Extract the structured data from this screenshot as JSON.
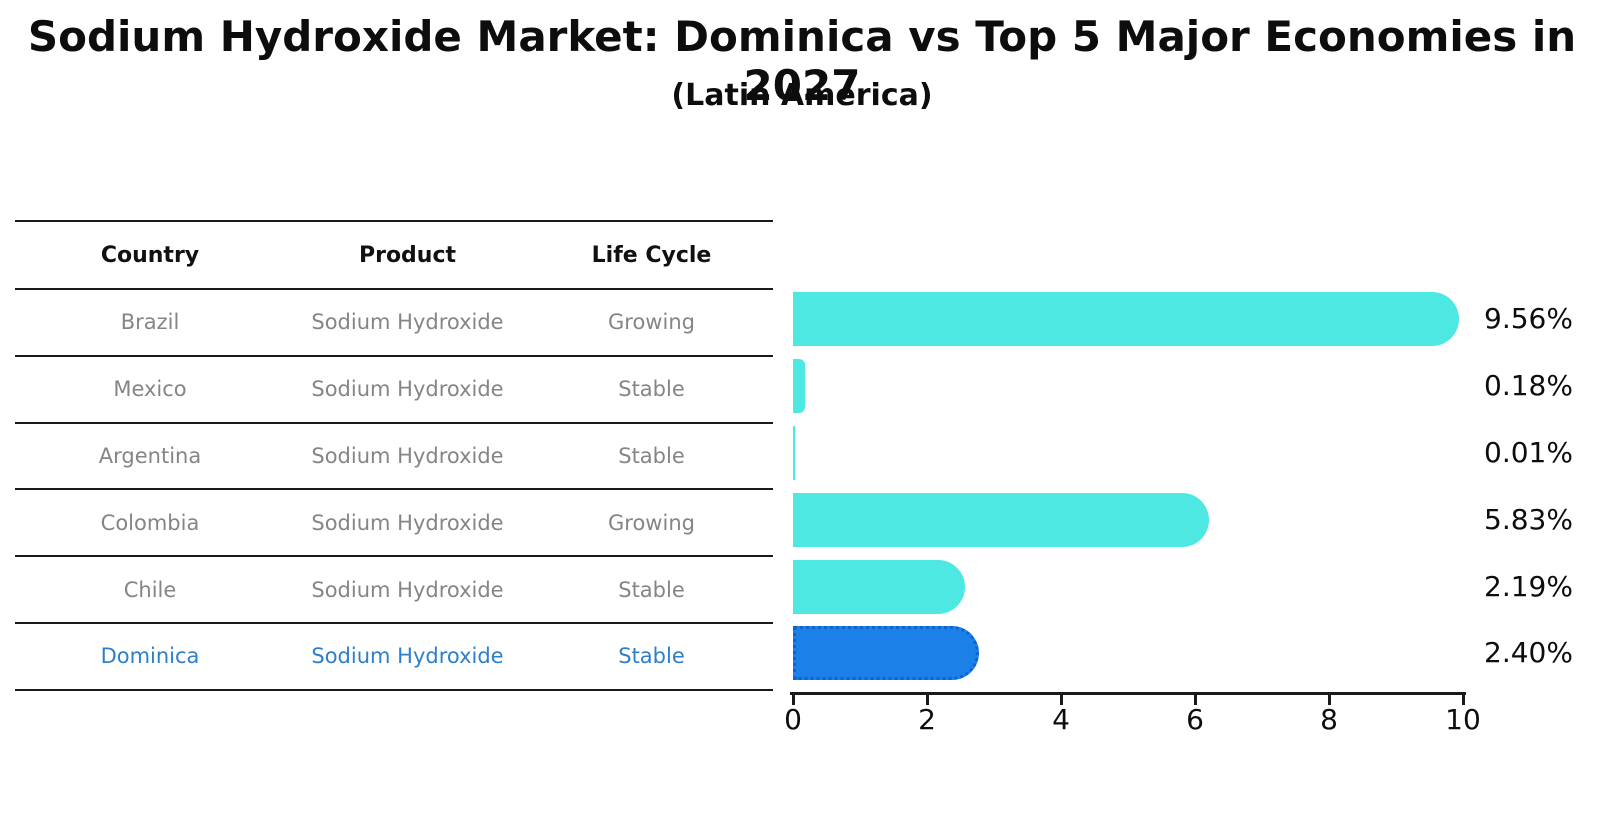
{
  "title": "Sodium Hydroxide Market: Dominica vs Top 5 Major Economies in 2027",
  "subtitle": "(Latin America)",
  "table": {
    "headers": [
      "Country",
      "Product",
      "Life Cycle"
    ],
    "rows": [
      {
        "country": "Brazil",
        "product": "Sodium Hydroxide",
        "life_cycle": "Growing",
        "highlight": false
      },
      {
        "country": "Mexico",
        "product": "Sodium Hydroxide",
        "life_cycle": "Stable",
        "highlight": false
      },
      {
        "country": "Argentina",
        "product": "Sodium Hydroxide",
        "life_cycle": "Stable",
        "highlight": false
      },
      {
        "country": "Colombia",
        "product": "Sodium Hydroxide",
        "life_cycle": "Growing",
        "highlight": false
      },
      {
        "country": "Chile",
        "product": "Sodium Hydroxide",
        "life_cycle": "Stable",
        "highlight": false
      },
      {
        "country": "Dominica",
        "product": "Sodium Hydroxide",
        "life_cycle": "Stable",
        "highlight": true
      }
    ]
  },
  "chart_data": {
    "type": "bar",
    "orientation": "horizontal",
    "categories": [
      "Brazil",
      "Mexico",
      "Argentina",
      "Colombia",
      "Chile",
      "Dominica"
    ],
    "values": [
      9.56,
      0.18,
      0.01,
      5.83,
      2.19,
      2.4
    ],
    "value_labels": [
      "9.56%",
      "0.18%",
      "0.01%",
      "5.83%",
      "2.19%",
      "2.40%"
    ],
    "title": "Sodium Hydroxide Market: Dominica vs Top 5 Major Economies in 2027 (Latin America)",
    "xlabel": "",
    "ylabel": "",
    "xlim": [
      0,
      10
    ],
    "xticks": [
      0,
      2,
      4,
      6,
      8,
      10
    ],
    "grid": false,
    "legend": false,
    "bar_color": "#4de8e2",
    "highlight_color": "#1b80e8",
    "highlight_border_color": "#0f63cf",
    "highlight_index": 5,
    "highlight_text_color": "#2e7fc9",
    "row_text_color": "#858585"
  }
}
